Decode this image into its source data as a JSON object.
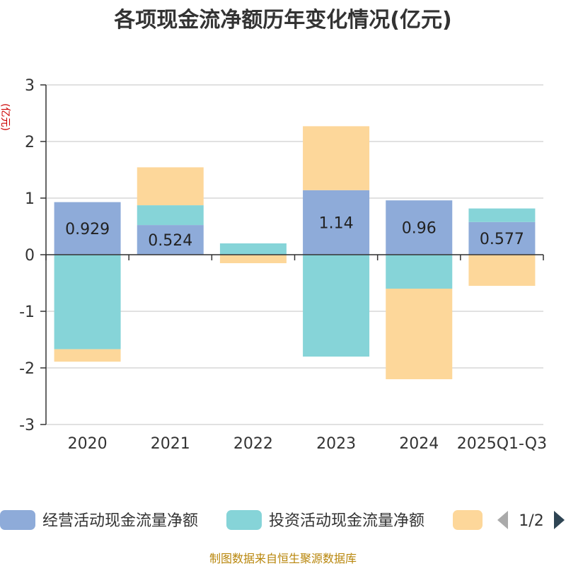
{
  "chart_data": {
    "type": "bar",
    "stacked": true,
    "title": "各项现金流净额历年变化情况(亿元)",
    "ylabel": "(亿元)",
    "ylim": [
      -3,
      3
    ],
    "yticks": [
      3,
      2,
      1,
      0,
      -1,
      -2,
      -3
    ],
    "grid": true,
    "categories": [
      "2020",
      "2021",
      "2022",
      "2023",
      "2024",
      "2025Q1-Q3"
    ],
    "series": [
      {
        "name": "经营活动现金流量净额",
        "color": "#8eabd9",
        "values": [
          0.929,
          0.524,
          0.0,
          1.14,
          0.96,
          0.577
        ],
        "labels": [
          "0.929",
          "0.524",
          "",
          "1.14",
          "0.96",
          "0.577"
        ]
      },
      {
        "name": "投资活动现金流量净额",
        "color": "#86d4d8",
        "values": [
          -1.67,
          0.35,
          0.2,
          -1.8,
          -0.6,
          0.24
        ]
      },
      {
        "name": "",
        "color": "#fdd79a",
        "values": [
          -0.22,
          0.67,
          -0.15,
          1.13,
          -1.6,
          -0.55
        ]
      }
    ],
    "legend": {
      "position": "bottom",
      "page": "1/2"
    }
  },
  "footer": {
    "source": "制图数据来自恒生聚源数据库"
  }
}
